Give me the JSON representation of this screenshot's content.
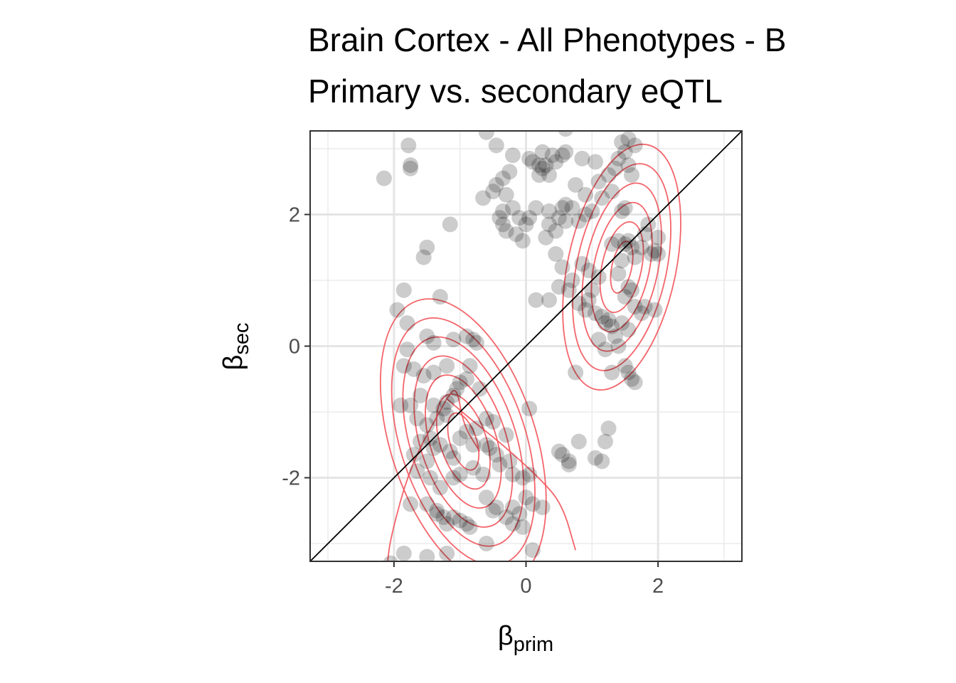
{
  "chart_data": {
    "type": "scatter",
    "title_lines": [
      "Brain Cortex - All Phenotypes - B",
      "Primary vs. secondary eQTL"
    ],
    "xlabel": {
      "symbol": "β",
      "subscript": "prim"
    },
    "ylabel": {
      "symbol": "β",
      "subscript": "sec"
    },
    "xlim": [
      -3.27,
      3.27
    ],
    "ylim": [
      -3.27,
      3.27
    ],
    "x_ticks": [
      -2,
      0,
      2
    ],
    "x_tick_labels": [
      "-2",
      "0",
      "2"
    ],
    "y_ticks": [
      -2,
      0,
      2
    ],
    "y_tick_labels": [
      "-2",
      "0",
      "2"
    ],
    "minor_ticks": [
      -3,
      -1,
      1,
      3
    ],
    "grid": true,
    "reference_line": {
      "type": "identity",
      "color": "#000000"
    },
    "point_color": "#000000",
    "point_opacity": 0.2,
    "contour_color": "#f2545b",
    "points": [
      [
        -2.15,
        2.55
      ],
      [
        -1.78,
        3.05
      ],
      [
        -1.75,
        2.75
      ],
      [
        -1.75,
        2.7
      ],
      [
        -1.5,
        1.5
      ],
      [
        -1.55,
        1.35
      ],
      [
        -1.15,
        1.85
      ],
      [
        -1.85,
        0.85
      ],
      [
        -1.95,
        0.55
      ],
      [
        -1.8,
        0.35
      ],
      [
        -1.3,
        0.75
      ],
      [
        -1.5,
        0.15
      ],
      [
        -1.4,
        0.05
      ],
      [
        -1.1,
        0.1
      ],
      [
        -0.9,
        0.15
      ],
      [
        -0.8,
        0.1
      ],
      [
        -0.75,
        0.05
      ],
      [
        -1.8,
        -0.05
      ],
      [
        -1.85,
        -0.3
      ],
      [
        -1.7,
        -0.35
      ],
      [
        -1.55,
        -0.45
      ],
      [
        -1.4,
        -0.4
      ],
      [
        -1.2,
        -0.3
      ],
      [
        -1.0,
        -0.55
      ],
      [
        -0.9,
        -0.5
      ],
      [
        -0.85,
        -0.3
      ],
      [
        -0.7,
        -0.65
      ],
      [
        -1.05,
        -0.65
      ],
      [
        -1.1,
        -0.75
      ],
      [
        -1.2,
        -0.85
      ],
      [
        -1.25,
        -0.95
      ],
      [
        -1.4,
        -0.9
      ],
      [
        -1.6,
        -0.75
      ],
      [
        -1.75,
        -0.9
      ],
      [
        -1.65,
        -1.1
      ],
      [
        -1.5,
        -1.2
      ],
      [
        -1.35,
        -1.1
      ],
      [
        -1.2,
        -1.05
      ],
      [
        -1.9,
        -0.9
      ],
      [
        -1.45,
        -1.4
      ],
      [
        -1.6,
        -1.45
      ],
      [
        -1.7,
        -1.65
      ],
      [
        -1.5,
        -1.75
      ],
      [
        -1.4,
        -1.55
      ],
      [
        -1.3,
        -1.5
      ],
      [
        -1.15,
        -1.6
      ],
      [
        -1.1,
        -1.7
      ],
      [
        -1.0,
        -1.4
      ],
      [
        -0.9,
        -1.3
      ],
      [
        -0.75,
        -1.25
      ],
      [
        -0.6,
        -1.1
      ],
      [
        -0.5,
        -1.15
      ],
      [
        -0.6,
        -1.5
      ],
      [
        -0.55,
        -1.55
      ],
      [
        -0.45,
        -1.65
      ],
      [
        -0.3,
        -1.35
      ],
      [
        -0.8,
        -1.5
      ],
      [
        -1.65,
        -1.9
      ],
      [
        -1.45,
        -2.0
      ],
      [
        -1.3,
        -2.15
      ],
      [
        -1.1,
        -2.0
      ],
      [
        -1.0,
        -1.95
      ],
      [
        -0.8,
        -1.85
      ],
      [
        -0.65,
        -1.95
      ],
      [
        -0.4,
        -1.8
      ],
      [
        -0.25,
        -1.75
      ],
      [
        -0.2,
        -1.95
      ],
      [
        -0.05,
        -2.0
      ],
      [
        0.05,
        -1.95
      ],
      [
        0.0,
        -2.3
      ],
      [
        0.1,
        -2.4
      ],
      [
        0.25,
        -2.45
      ],
      [
        -1.75,
        -2.4
      ],
      [
        -1.5,
        -2.4
      ],
      [
        -1.35,
        -2.5
      ],
      [
        -1.25,
        -2.6
      ],
      [
        -1.2,
        -2.7
      ],
      [
        -1.1,
        -2.6
      ],
      [
        -1.0,
        -2.65
      ],
      [
        -0.9,
        -2.7
      ],
      [
        -0.85,
        -2.75
      ],
      [
        -0.6,
        -2.3
      ],
      [
        -0.5,
        -2.5
      ],
      [
        -0.45,
        -2.45
      ],
      [
        -0.3,
        -2.6
      ],
      [
        -0.2,
        -2.7
      ],
      [
        -0.1,
        -2.55
      ],
      [
        -0.05,
        -2.75
      ],
      [
        -0.6,
        -3.0
      ],
      [
        -0.2,
        -2.45
      ],
      [
        -1.35,
        -2.55
      ],
      [
        -2.05,
        -3.3
      ],
      [
        -1.85,
        -3.15
      ],
      [
        -1.5,
        -3.2
      ],
      [
        -1.2,
        -3.15
      ],
      [
        0.1,
        -3.1
      ],
      [
        0.05,
        -0.95
      ],
      [
        0.5,
        -1.6
      ],
      [
        0.55,
        -1.65
      ],
      [
        0.65,
        -1.75
      ],
      [
        0.65,
        -1.8
      ],
      [
        0.8,
        -1.45
      ],
      [
        1.05,
        -1.7
      ],
      [
        1.15,
        -1.75
      ],
      [
        1.2,
        -1.45
      ],
      [
        1.25,
        -1.25
      ],
      [
        1.3,
        -0.4
      ],
      [
        -0.6,
        3.25
      ],
      [
        -0.45,
        3.05
      ],
      [
        -0.2,
        2.9
      ],
      [
        -0.25,
        2.65
      ],
      [
        -0.35,
        2.55
      ],
      [
        -0.45,
        2.45
      ],
      [
        -0.65,
        2.25
      ],
      [
        -0.5,
        2.35
      ],
      [
        -0.3,
        2.3
      ],
      [
        -0.2,
        2.1
      ],
      [
        -0.35,
        2.05
      ],
      [
        -0.1,
        1.95
      ],
      [
        0.05,
        1.95
      ],
      [
        0.0,
        1.85
      ],
      [
        -0.15,
        1.7
      ],
      [
        -0.05,
        1.6
      ],
      [
        -0.3,
        1.75
      ],
      [
        -0.35,
        1.85
      ],
      [
        -0.4,
        1.95
      ],
      [
        0.05,
        2.85
      ],
      [
        0.1,
        2.8
      ],
      [
        0.2,
        2.75
      ],
      [
        0.25,
        2.7
      ],
      [
        0.3,
        2.75
      ],
      [
        0.25,
        2.95
      ],
      [
        0.4,
        2.9
      ],
      [
        0.45,
        2.8
      ],
      [
        0.55,
        2.9
      ],
      [
        0.6,
        2.95
      ],
      [
        0.85,
        2.85
      ],
      [
        1.05,
        2.8
      ],
      [
        1.25,
        2.6
      ],
      [
        1.35,
        2.7
      ],
      [
        1.4,
        2.85
      ],
      [
        1.45,
        3.1
      ],
      [
        1.5,
        2.95
      ],
      [
        1.55,
        2.75
      ],
      [
        1.6,
        2.6
      ],
      [
        1.65,
        3.05
      ],
      [
        1.55,
        3.15
      ],
      [
        0.6,
        3.3
      ],
      [
        0.2,
        2.6
      ],
      [
        0.35,
        2.6
      ],
      [
        0.15,
        2.1
      ],
      [
        0.35,
        2.05
      ],
      [
        0.5,
        1.95
      ],
      [
        0.55,
        2.1
      ],
      [
        0.6,
        2.15
      ],
      [
        0.75,
        2.45
      ],
      [
        0.7,
        2.1
      ],
      [
        0.9,
        2.0
      ],
      [
        0.8,
        1.9
      ],
      [
        1.0,
        2.05
      ],
      [
        0.9,
        2.3
      ],
      [
        1.1,
        2.5
      ],
      [
        1.15,
        2.25
      ],
      [
        1.3,
        2.35
      ],
      [
        1.45,
        2.05
      ],
      [
        1.5,
        2.1
      ],
      [
        0.35,
        1.85
      ],
      [
        0.45,
        1.75
      ],
      [
        0.6,
        1.9
      ],
      [
        0.3,
        1.65
      ],
      [
        0.45,
        1.4
      ],
      [
        0.55,
        1.2
      ],
      [
        0.7,
        1.0
      ],
      [
        0.85,
        1.25
      ],
      [
        0.95,
        1.15
      ],
      [
        1.1,
        1.05
      ],
      [
        1.0,
        0.85
      ],
      [
        0.95,
        0.7
      ],
      [
        0.8,
        0.65
      ],
      [
        0.9,
        0.55
      ],
      [
        1.05,
        0.5
      ],
      [
        1.15,
        0.45
      ],
      [
        1.2,
        0.35
      ],
      [
        1.25,
        0.4
      ],
      [
        1.1,
        0.1
      ],
      [
        1.3,
        1.55
      ],
      [
        1.4,
        1.6
      ],
      [
        1.5,
        1.55
      ],
      [
        1.55,
        1.6
      ],
      [
        1.6,
        1.5
      ],
      [
        1.65,
        1.35
      ],
      [
        1.45,
        1.3
      ],
      [
        1.4,
        1.1
      ],
      [
        1.55,
        0.9
      ],
      [
        1.6,
        0.85
      ],
      [
        1.5,
        0.75
      ],
      [
        1.65,
        0.6
      ],
      [
        1.75,
        0.5
      ],
      [
        1.8,
        0.6
      ],
      [
        1.95,
        0.55
      ],
      [
        1.9,
        1.4
      ],
      [
        1.95,
        1.45
      ],
      [
        2.0,
        1.4
      ],
      [
        1.75,
        1.5
      ],
      [
        1.8,
        1.7
      ],
      [
        1.85,
        1.85
      ],
      [
        2.0,
        1.65
      ],
      [
        1.45,
        0.35
      ],
      [
        1.55,
        0.25
      ],
      [
        1.35,
        0.15
      ],
      [
        1.2,
        -0.05
      ],
      [
        1.5,
        -0.3
      ],
      [
        1.55,
        -0.4
      ],
      [
        1.6,
        -0.5
      ],
      [
        1.65,
        -0.55
      ],
      [
        1.4,
        0.0
      ],
      [
        0.75,
        -0.4
      ],
      [
        0.35,
        0.7
      ],
      [
        0.15,
        0.7
      ],
      [
        0.5,
        0.9
      ],
      [
        0.65,
        0.85
      ],
      [
        1.3,
        0.3
      ]
    ],
    "contours": [
      [
        [
          -1.2,
          -0.8
        ],
        [
          -1.75,
          -1.8
        ],
        [
          -2.05,
          -2.9
        ],
        [
          -2.1,
          -3.3
        ]
      ],
      [
        [
          -1.2,
          -0.8
        ],
        [
          -0.85,
          -1.1
        ],
        [
          -0.35,
          -1.5
        ],
        [
          0.2,
          -2.0
        ],
        [
          0.55,
          -2.4
        ],
        [
          0.75,
          -3.1
        ]
      ],
      [
        [
          -1.2,
          -0.8
        ],
        [
          -1.05,
          -0.6
        ],
        [
          -0.95,
          -1.2
        ],
        [
          -0.7,
          -1.6
        ]
      ]
    ]
  }
}
